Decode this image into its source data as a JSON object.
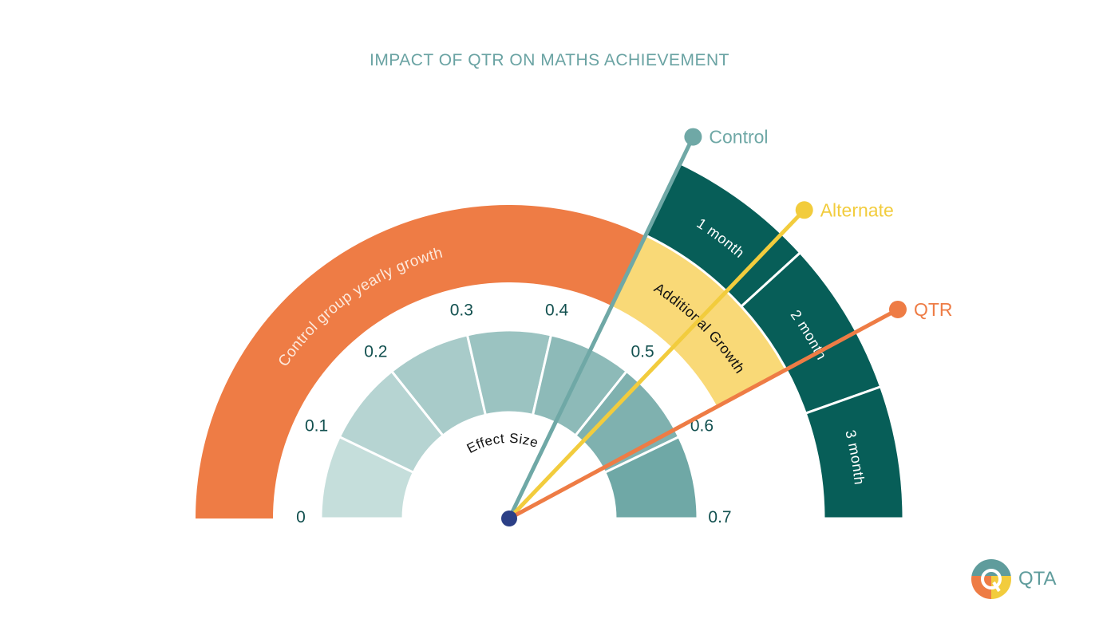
{
  "title": "IMPACT OF QTR ON MATHS ACHIEVEMENT",
  "chart_data": {
    "type": "gauge",
    "title": "IMPACT OF QTR ON MATHS ACHIEVEMENT",
    "range": [
      0,
      0.7
    ],
    "ticks": [
      "0",
      "0.1",
      "0.2",
      "0.3",
      "0.4",
      "0.5",
      "0.6",
      "0.7"
    ],
    "tick_values": [
      0,
      0.1,
      0.2,
      0.3,
      0.4,
      0.5,
      0.6,
      0.7
    ],
    "center_label": "Effect Size",
    "scale_colors": [
      "#c5dedb",
      "#b6d4d2",
      "#a8cbc9",
      "#9bc3c1",
      "#8dbab8",
      "#7fb1af",
      "#6fa8a6"
    ],
    "bands": [
      {
        "label": "Control group yearly growth",
        "from": 0,
        "to": 0.45,
        "color": "#ee7c45",
        "text_color": "#fde9dc"
      },
      {
        "label": "Additional Growth",
        "from": 0.45,
        "to": 0.59,
        "color": "#f9d977",
        "text_color": "#111111"
      }
    ],
    "months": [
      {
        "label": "1 month",
        "from": 0.45,
        "to": 0.535
      },
      {
        "label": "2 month",
        "from": 0.535,
        "to": 0.624
      },
      {
        "label": "3 month",
        "from": 0.624,
        "to": 0.7
      }
    ],
    "month_color": "#075e58",
    "needles": [
      {
        "name": "Control",
        "value": 0.45,
        "color": "#6fa8a6"
      },
      {
        "name": "Alternate",
        "value": 0.52,
        "color": "#f2cc3d"
      },
      {
        "name": "QTR",
        "value": 0.59,
        "color": "#ee7c45"
      }
    ],
    "pivot_color": "#2b3f86"
  },
  "logo": {
    "text": "QTA",
    "colors": [
      "#5f9c9c",
      "#ee7c45",
      "#f2cc3d"
    ]
  }
}
